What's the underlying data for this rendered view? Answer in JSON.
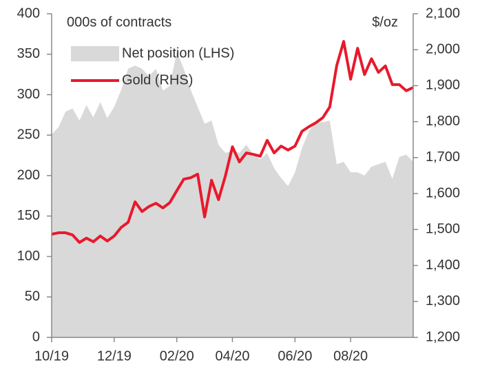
{
  "chart_data": {
    "type": "area-line",
    "y_label": "000s of contracts",
    "y2_label": "$/oz",
    "categories": [
      "10/19",
      null,
      null,
      null,
      null,
      null,
      null,
      null,
      null,
      "12/19",
      null,
      null,
      null,
      null,
      null,
      null,
      null,
      null,
      "02/20",
      null,
      null,
      null,
      null,
      null,
      null,
      null,
      "04/20",
      null,
      null,
      null,
      null,
      null,
      null,
      null,
      null,
      "06/20",
      null,
      null,
      null,
      null,
      null,
      null,
      null,
      "08/20",
      null,
      null,
      null,
      null,
      null,
      null,
      null,
      null,
      null
    ],
    "series": [
      {
        "name": "Net position (LHS)",
        "color": "#d9d9d9",
        "axis": "y",
        "kind": "area",
        "values": [
          251,
          260,
          279,
          283,
          268,
          287,
          272,
          291,
          271,
          285,
          306,
          332,
          336,
          332,
          323,
          332,
          305,
          311,
          353,
          332,
          306,
          285,
          264,
          268,
          238,
          228,
          231,
          228,
          238,
          226,
          220,
          228,
          209,
          197,
          187,
          204,
          234,
          255,
          266,
          266,
          268,
          214,
          217,
          204,
          204,
          200,
          211,
          214,
          217,
          196,
          223,
          226,
          217
        ]
      },
      {
        "name": "Gold (RHS)",
        "color": "#e8192c",
        "axis": "y2",
        "kind": "line",
        "values": [
          1487,
          1491,
          1491,
          1485,
          1464,
          1476,
          1466,
          1482,
          1468,
          1482,
          1506,
          1520,
          1577,
          1550,
          1564,
          1573,
          1560,
          1575,
          1608,
          1640,
          1644,
          1654,
          1535,
          1637,
          1583,
          1650,
          1730,
          1688,
          1713,
          1709,
          1704,
          1748,
          1713,
          1732,
          1721,
          1732,
          1773,
          1786,
          1797,
          1811,
          1841,
          1956,
          2023,
          1918,
          2004,
          1931,
          1975,
          1937,
          1955,
          1903,
          1903,
          1886,
          1895
        ]
      }
    ],
    "ylim": [
      0,
      400
    ],
    "yticks": [
      0,
      50,
      100,
      150,
      200,
      250,
      300,
      350,
      400
    ],
    "y2lim": [
      1200,
      2100
    ],
    "y2ticks": [
      {
        "value": 1200,
        "label": "1,200"
      },
      {
        "value": 1300,
        "label": "1,300"
      },
      {
        "value": 1400,
        "label": "1,400"
      },
      {
        "value": 1500,
        "label": "1,500"
      },
      {
        "value": 1600,
        "label": "1,600"
      },
      {
        "value": 1700,
        "label": "1,700"
      },
      {
        "value": 1800,
        "label": "1,800"
      },
      {
        "value": 1900,
        "label": "1,900"
      },
      {
        "value": 2000,
        "label": "2,000"
      },
      {
        "value": 2100,
        "label": "2,100"
      }
    ],
    "grid": false
  }
}
